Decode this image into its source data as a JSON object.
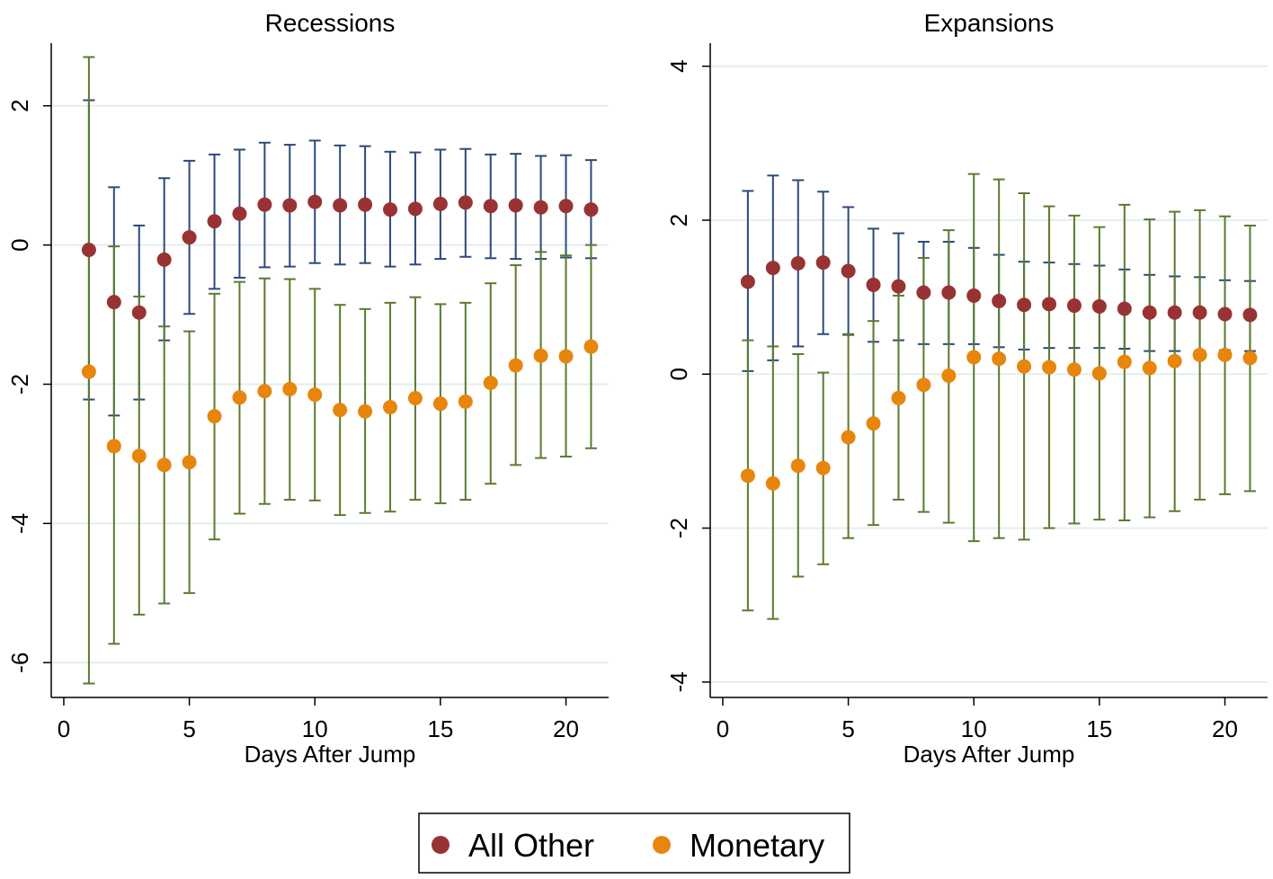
{
  "chart_data": [
    {
      "type": "scatter",
      "title": "Recessions",
      "xlabel": "Days After Jump",
      "ylabel": "",
      "xlim": [
        -0.5,
        21.7
      ],
      "ylim": [
        -6.5,
        2.9
      ],
      "xticks": [
        0,
        5,
        10,
        15,
        20
      ],
      "yticks": [
        -6,
        -4,
        -2,
        0,
        2
      ],
      "ytick_labels": [
        "-6",
        "-4",
        "-2",
        "0",
        "2"
      ],
      "grid": true,
      "x": [
        1,
        2,
        3,
        4,
        5,
        6,
        7,
        8,
        9,
        10,
        11,
        12,
        13,
        14,
        15,
        16,
        17,
        18,
        19,
        20,
        21
      ],
      "series": [
        {
          "name": "All Other",
          "color": "#993333",
          "ci_color": "#2a4a7a",
          "values": [
            -0.07,
            -0.82,
            -0.97,
            -0.21,
            0.11,
            0.34,
            0.45,
            0.58,
            0.57,
            0.62,
            0.57,
            0.58,
            0.51,
            0.52,
            0.59,
            0.61,
            0.56,
            0.57,
            0.54,
            0.56,
            0.51
          ],
          "lower": [
            -2.22,
            -2.45,
            -2.22,
            -1.37,
            -0.99,
            -0.63,
            -0.47,
            -0.32,
            -0.31,
            -0.26,
            -0.28,
            -0.26,
            -0.31,
            -0.28,
            -0.2,
            -0.17,
            -0.19,
            -0.2,
            -0.2,
            -0.18,
            -0.19
          ],
          "upper": [
            2.08,
            0.83,
            0.28,
            0.96,
            1.21,
            1.3,
            1.37,
            1.47,
            1.44,
            1.5,
            1.43,
            1.42,
            1.34,
            1.33,
            1.37,
            1.38,
            1.3,
            1.31,
            1.28,
            1.29,
            1.22
          ]
        },
        {
          "name": "Monetary",
          "color": "#e8850c",
          "ci_color": "#5b7a2e",
          "values": [
            -1.82,
            -2.89,
            -3.03,
            -3.16,
            -3.12,
            -2.46,
            -2.19,
            -2.1,
            -2.07,
            -2.15,
            -2.37,
            -2.39,
            -2.33,
            -2.2,
            -2.28,
            -2.25,
            -1.98,
            -1.73,
            -1.59,
            -1.6,
            -1.46
          ],
          "lower": [
            -6.3,
            -5.73,
            -5.31,
            -5.15,
            -5.0,
            -4.23,
            -3.86,
            -3.72,
            -3.66,
            -3.67,
            -3.88,
            -3.85,
            -3.83,
            -3.66,
            -3.71,
            -3.66,
            -3.43,
            -3.16,
            -3.06,
            -3.04,
            -2.92
          ],
          "upper": [
            2.7,
            -0.02,
            -0.74,
            -1.17,
            -1.24,
            -0.7,
            -0.53,
            -0.48,
            -0.49,
            -0.63,
            -0.86,
            -0.92,
            -0.83,
            -0.75,
            -0.85,
            -0.83,
            -0.55,
            -0.29,
            -0.1,
            -0.15,
            0.0
          ]
        }
      ]
    },
    {
      "type": "scatter",
      "title": "Expansions",
      "xlabel": "Days After Jump",
      "ylabel": "",
      "xlim": [
        -0.5,
        21.7
      ],
      "ylim": [
        -4.2,
        4.3
      ],
      "xticks": [
        0,
        5,
        10,
        15,
        20
      ],
      "yticks": [
        -4,
        -2,
        0,
        2,
        4
      ],
      "ytick_labels": [
        "-4",
        "-2",
        "0",
        "2",
        "4"
      ],
      "grid": true,
      "x": [
        1,
        2,
        3,
        4,
        5,
        6,
        7,
        8,
        9,
        10,
        11,
        12,
        13,
        14,
        15,
        16,
        17,
        18,
        19,
        20,
        21
      ],
      "series": [
        {
          "name": "All Other",
          "color": "#993333",
          "ci_color": "#2a4a7a",
          "values": [
            1.2,
            1.38,
            1.44,
            1.45,
            1.34,
            1.16,
            1.14,
            1.06,
            1.06,
            1.02,
            0.95,
            0.9,
            0.91,
            0.89,
            0.88,
            0.85,
            0.8,
            0.8,
            0.8,
            0.78,
            0.77
          ],
          "lower": [
            0.04,
            0.18,
            0.36,
            0.52,
            0.51,
            0.42,
            0.44,
            0.39,
            0.39,
            0.39,
            0.35,
            0.32,
            0.34,
            0.34,
            0.34,
            0.33,
            0.3,
            0.3,
            0.3,
            0.31,
            0.3
          ],
          "upper": [
            2.38,
            2.58,
            2.52,
            2.37,
            2.17,
            1.89,
            1.83,
            1.72,
            1.72,
            1.64,
            1.55,
            1.46,
            1.45,
            1.43,
            1.41,
            1.36,
            1.29,
            1.27,
            1.26,
            1.22,
            1.21
          ]
        },
        {
          "name": "Monetary",
          "color": "#e8850c",
          "ci_color": "#5b7a2e",
          "values": [
            -1.32,
            -1.42,
            -1.19,
            -1.22,
            -0.82,
            -0.64,
            -0.31,
            -0.14,
            -0.02,
            0.22,
            0.2,
            0.1,
            0.09,
            0.06,
            0.01,
            0.16,
            0.08,
            0.17,
            0.25,
            0.25,
            0.21
          ],
          "lower": [
            -3.07,
            -3.18,
            -2.63,
            -2.47,
            -2.13,
            -1.96,
            -1.63,
            -1.79,
            -1.93,
            -2.17,
            -2.13,
            -2.15,
            -2.0,
            -1.94,
            -1.89,
            -1.9,
            -1.86,
            -1.78,
            -1.63,
            -1.56,
            -1.52
          ],
          "upper": [
            0.44,
            0.36,
            0.26,
            0.02,
            0.52,
            0.69,
            1.02,
            1.51,
            1.87,
            2.6,
            2.53,
            2.35,
            2.18,
            2.06,
            1.91,
            2.2,
            2.01,
            2.11,
            2.13,
            2.05,
            1.93
          ]
        }
      ]
    }
  ],
  "legend": {
    "placement": "bottom-center",
    "items": [
      {
        "label": "All Other",
        "color": "#993333"
      },
      {
        "label": "Monetary",
        "color": "#e8850c"
      }
    ]
  }
}
